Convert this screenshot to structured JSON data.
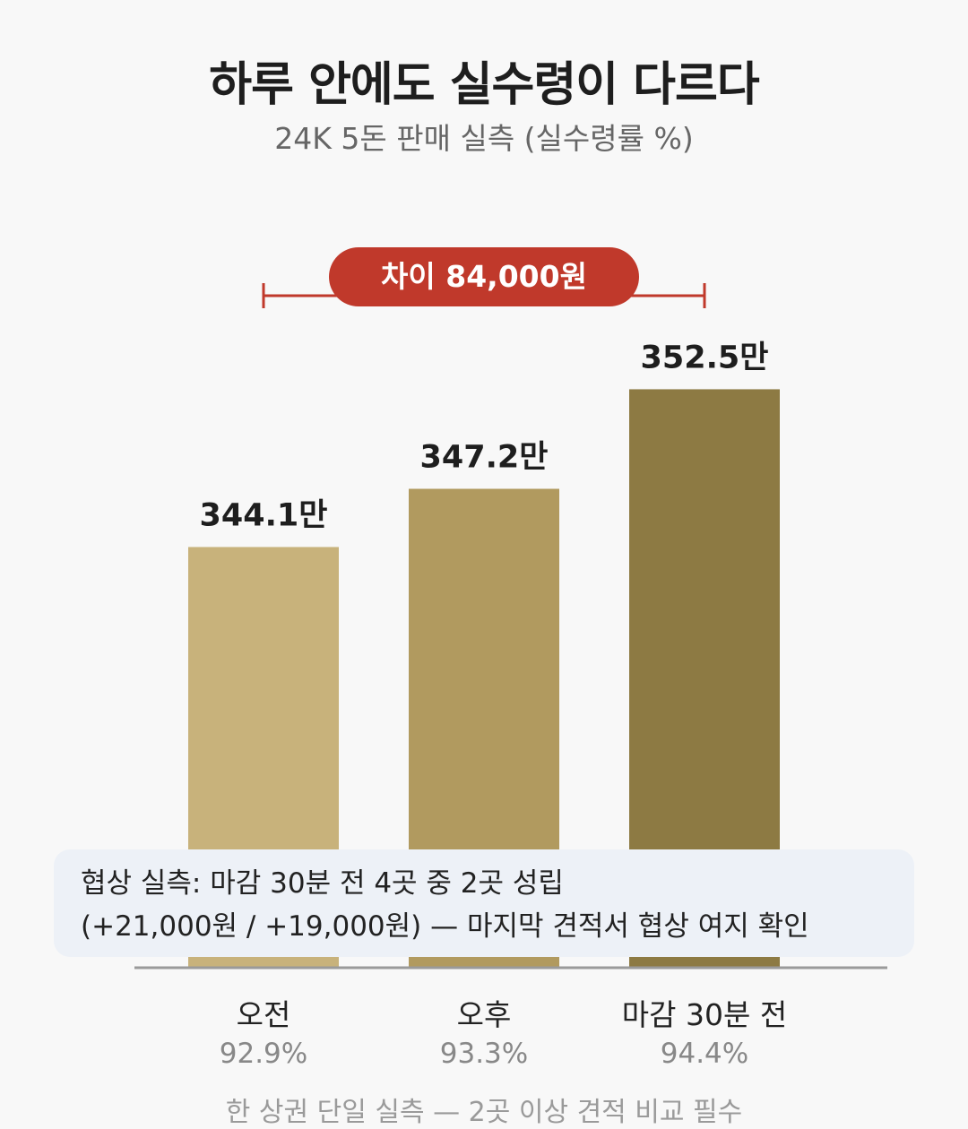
{
  "title": "하루 안에도 실수령이 다르다",
  "subtitle": "24K 5돈 판매 실측 (실수령률 %)",
  "difference_label": "차이 84,000원",
  "note": {
    "line1": "협상 실측: 마감 30분 전 4곳 중 2곳 성립",
    "line2": "(+21,000원 / +19,000원) — 마지막 견적서 협상 여지 확인"
  },
  "footer": "한 상권 단일 실측 — 2곳 이상 견적 비교 필수",
  "chart_data": {
    "type": "bar",
    "categories": [
      "오전",
      "오후",
      "마감 30분 전"
    ],
    "values": [
      344.1,
      347.2,
      352.5
    ],
    "value_labels": [
      "344.1만",
      "347.2만",
      "352.5만"
    ],
    "rates": [
      "92.9%",
      "93.3%",
      "94.4%"
    ],
    "colors": [
      "#c8b27b",
      "#b19a5f",
      "#8d7a43"
    ],
    "accent_color": "#c0392b",
    "title": "하루 안에도 실수령이 다르다",
    "xlabel": "",
    "ylabel": "",
    "grid": false,
    "legend": "none"
  }
}
